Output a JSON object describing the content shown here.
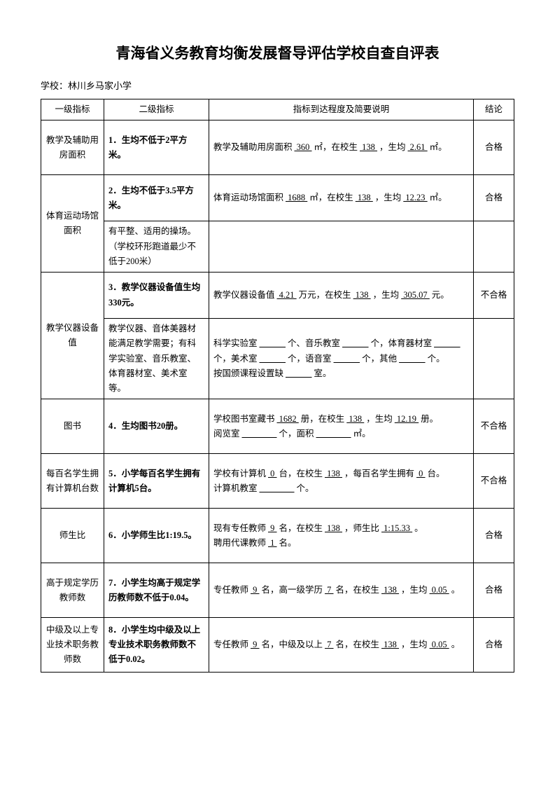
{
  "title": "青海省义务教育均衡发展督导评估学校自查自评表",
  "schoolLabel": "学校：",
  "schoolName": "林川乡马家小学",
  "headers": {
    "c1": "一级指标",
    "c2": "二级指标",
    "c3": "指标到达程度及简要说明",
    "c4": "结论"
  },
  "conclusions": {
    "pass": "合格",
    "fail": "不合格"
  },
  "rows": {
    "r1": {
      "cat": "教学及辅助用房面积",
      "ind": "1．生均不低于2平方米。",
      "d_pre": "教学及辅助用房面积",
      "d_v1": " 360 ",
      "d_u1": "㎡，在校生",
      "d_v2": " 138 ",
      "d_u2": "，生均",
      "d_v3": " 2.61 ",
      "d_u3": "㎡。",
      "concl": "合格"
    },
    "r2a": {
      "cat": "体育运动场馆面积",
      "ind": "2．生均不低于3.5平方米。",
      "d_pre": "体育运动场馆面积",
      "d_v1": " 1688 ",
      "d_u1": "㎡，在校生",
      "d_v2": " 138 ",
      "d_u2": "，生均",
      "d_v3": " 12.23 ",
      "d_u3": "㎡。",
      "concl": "合格"
    },
    "r2b": {
      "ind": "有平整、适用的操场。（学校环形跑道最少不低于200米）"
    },
    "r3a": {
      "cat": "教学仪器设备值",
      "ind": "3．教学仪器设备值生均330元。",
      "d_pre": "教学仪器设备值",
      "d_v1": " 4.21 ",
      "d_u1": "万元，在校生",
      "d_v2": " 138 ",
      "d_u2": "，生均",
      "d_v3": " 305.07 ",
      "d_u3": "元。",
      "concl": "不合格"
    },
    "r3b": {
      "ind": "教学仪器、音体美器材能满足教学需要；有科学实验室、音乐教室、体育器材室、美术室等。",
      "d1": "科学实验室",
      "b": "　　　",
      "d2": "个、音乐教室",
      "d3": "个，体育器材室",
      "d4": "个，美术室",
      "d5": "个，语音室",
      "d6": "个，其他",
      "d7": "个。",
      "d8": "按国颁课程设置缺",
      "d9": "室。"
    },
    "r4": {
      "cat": "图书",
      "ind": "4．生均图书20册。",
      "d_pre": "学校图书室藏书",
      "d_v1": " 1682 ",
      "d_u1": "册，在校生",
      "d_v2": " 138 ",
      "d_u2": "，生均",
      "d_v3": " 12.19 ",
      "d_u3": "册。",
      "d2a": "阅览室",
      "b": "　　　　",
      "d2b": "个，面积",
      "d2c": "㎡。",
      "concl": "不合格"
    },
    "r5": {
      "cat": "每百名学生拥有计算机台数",
      "ind": "5．小学每百名学生拥有计算机5台。",
      "d_pre": "学校有计算机",
      "d_v1": " 0 ",
      "d_u1": "台，在校生",
      "d_v2": " 138 ",
      "d_u2": "，每百名学生拥有",
      "d_v3": " 0 ",
      "d_u3": "台。",
      "d2a": "计算机教室",
      "b": "　　　　",
      "d2b": "个。",
      "concl": "不合格"
    },
    "r6": {
      "cat": "师生比",
      "ind": "6．小学师生比1:19.5。",
      "d_pre": "现有专任教师",
      "d_v1": " 9 ",
      "d_u1": "名，在校生",
      "d_v2": " 138 ",
      "d_u2": "，师生比",
      "d_v3": " 1:15.33 ",
      "d_u3": "。",
      "d2a": "聘用代课教师",
      "d2v": " 1 ",
      "d2b": "名。",
      "concl": "合格"
    },
    "r7": {
      "cat": "高于规定学历教师数",
      "ind": "7．小学生均高于规定学历教师数不低于0.04。",
      "d_pre": "专任教师",
      "d_v1": " 9 ",
      "d_u1": "名，高一级学历",
      "d_v2": " 7 ",
      "d_u2": "名，在校生",
      "d_v3": " 138 ",
      "d_u3": "，生均",
      "d_v4": " 0.05 ",
      "d_u4": "。",
      "concl": "合格"
    },
    "r8": {
      "cat": "中级及以上专业技术职务教师数",
      "ind": "8．小学生均中级及以上专业技术职务教师数不低于0.02。",
      "d_pre": "专任教师",
      "d_v1": " 9 ",
      "d_u1": "名，中级及以上",
      "d_v2": " 7 ",
      "d_u2": "名，在校生",
      "d_v3": " 138 ",
      "d_u3": "，生均",
      "d_v4": " 0.05 ",
      "d_u4": "。",
      "concl": "合格"
    }
  }
}
